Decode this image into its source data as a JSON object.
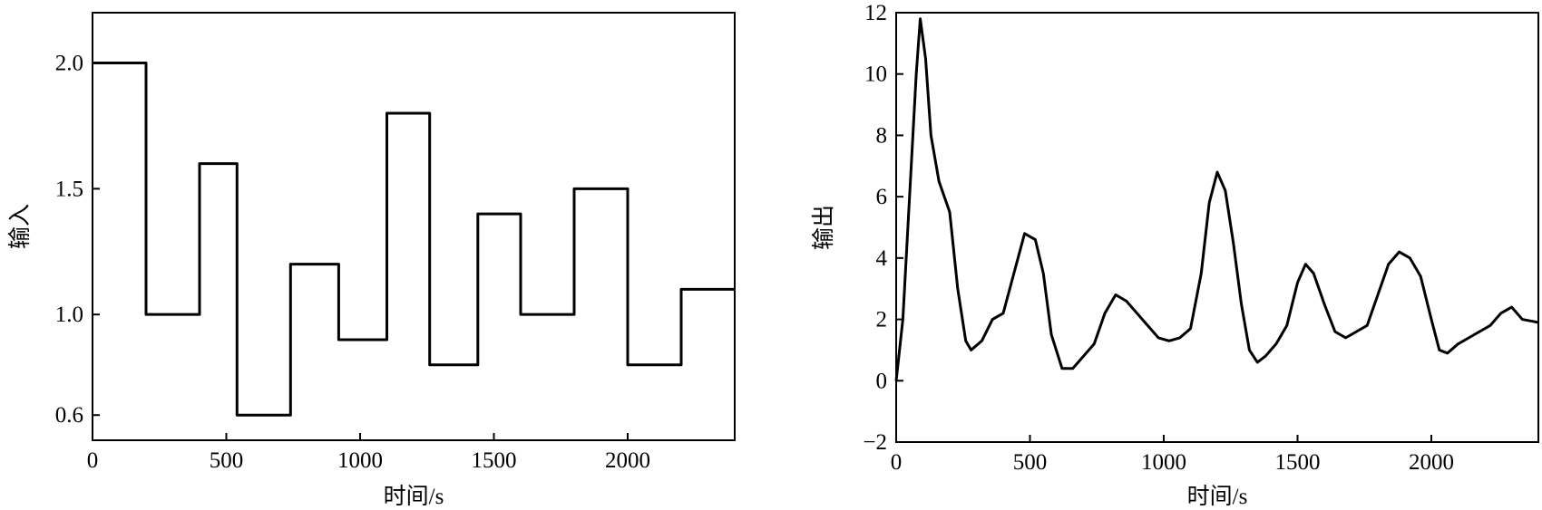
{
  "chart_data": [
    {
      "type": "line",
      "step": "post",
      "y_label": "输入",
      "x_label": "时间/s",
      "color": "#000000",
      "xlim": [
        0,
        2400
      ],
      "ylim": [
        0.5,
        2.2
      ],
      "xticks": [
        0,
        500,
        1000,
        1500,
        2000
      ],
      "yticks": [
        0.6,
        {
          "value": 1,
          "label": "1.0"
        },
        1.5,
        {
          "value": 2,
          "label": "2.0"
        }
      ],
      "x": [
        0,
        200,
        400,
        540,
        740,
        920,
        1100,
        1260,
        1440,
        1600,
        1800,
        2000,
        2200
      ],
      "values": [
        2.0,
        1.0,
        1.6,
        0.6,
        1.2,
        0.9,
        1.8,
        0.8,
        1.4,
        1.0,
        1.5,
        0.8,
        1.1
      ]
    },
    {
      "type": "line",
      "y_label": "输出",
      "x_label": "时间/s",
      "color": "#000000",
      "xlim": [
        0,
        2400
      ],
      "ylim": [
        -2,
        12
      ],
      "xticks": [
        0,
        500,
        1000,
        1500,
        2000
      ],
      "yticks": [
        {
          "value": -2,
          "label": "−2"
        },
        0,
        2,
        4,
        6,
        8,
        10,
        12
      ],
      "x": [
        0,
        25,
        50,
        75,
        90,
        110,
        130,
        160,
        200,
        230,
        260,
        280,
        320,
        360,
        400,
        440,
        480,
        520,
        550,
        580,
        620,
        660,
        700,
        740,
        780,
        820,
        860,
        900,
        940,
        980,
        1020,
        1060,
        1100,
        1140,
        1170,
        1200,
        1230,
        1260,
        1290,
        1320,
        1350,
        1380,
        1420,
        1460,
        1500,
        1530,
        1560,
        1600,
        1640,
        1680,
        1720,
        1760,
        1800,
        1840,
        1880,
        1920,
        1960,
        2000,
        2030,
        2060,
        2100,
        2140,
        2180,
        2220,
        2260,
        2300,
        2340,
        2400
      ],
      "values": [
        0,
        2,
        6,
        10,
        11.8,
        10.5,
        8,
        6.5,
        5.5,
        3,
        1.3,
        1.0,
        1.3,
        2,
        2.2,
        3.5,
        4.8,
        4.6,
        3.5,
        1.5,
        0.4,
        0.4,
        0.8,
        1.2,
        2.2,
        2.8,
        2.6,
        2.2,
        1.8,
        1.4,
        1.3,
        1.4,
        1.7,
        3.5,
        5.8,
        6.8,
        6.2,
        4.5,
        2.5,
        1.0,
        0.6,
        0.8,
        1.2,
        1.8,
        3.2,
        3.8,
        3.5,
        2.5,
        1.6,
        1.4,
        1.6,
        1.8,
        2.8,
        3.8,
        4.2,
        4.0,
        3.4,
        2.0,
        1.0,
        0.9,
        1.2,
        1.4,
        1.6,
        1.8,
        2.2,
        2.4,
        2.0,
        1.9
      ]
    }
  ]
}
